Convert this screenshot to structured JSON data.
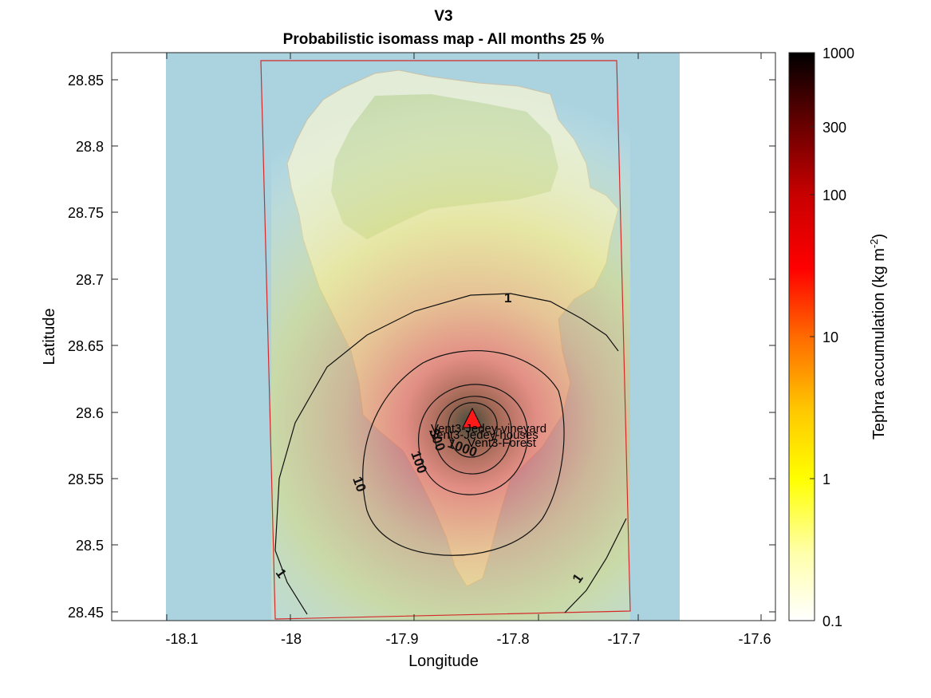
{
  "chart_data": {
    "type": "map",
    "title": "V3",
    "subtitle": "Probabilistic isomass map - All months 25 %",
    "xlabel": "Longitude",
    "ylabel": "Latitude",
    "xlim": [
      -18.15,
      -17.585
    ],
    "ylim": [
      28.443,
      28.87
    ],
    "x_ticks": [
      -18.1,
      -18.0,
      -17.9,
      -17.8,
      -17.7,
      -17.6
    ],
    "x_tick_labels": [
      "-18.1",
      "-18",
      "-17.9",
      "-17.8",
      "-17.7",
      "-17.6"
    ],
    "y_ticks": [
      28.45,
      28.5,
      28.55,
      28.6,
      28.65,
      28.7,
      28.75,
      28.8,
      28.85
    ],
    "y_tick_labels": [
      "28.45",
      "28.5",
      "28.55",
      "28.6",
      "28.65",
      "28.7",
      "28.75",
      "28.8",
      "28.85"
    ],
    "vent": {
      "lon": -17.842,
      "lat": 28.597,
      "marker": "red-triangle"
    },
    "sites": [
      {
        "label": "Vent3-Jedey-vineyard",
        "lon": -17.873,
        "lat": 28.59
      },
      {
        "label": "Vent3-Jedey-houses",
        "lon": -17.876,
        "lat": 28.584
      },
      {
        "label": "Vent3-Forest",
        "lon": -17.843,
        "lat": 28.579
      }
    ],
    "contours": [
      {
        "level": 1,
        "label": "1"
      },
      {
        "level": 10,
        "label": "10"
      },
      {
        "level": 100,
        "label": "100"
      },
      {
        "level": 300,
        "label": "300"
      },
      {
        "level": 1000,
        "label": "1000"
      }
    ],
    "colorbar": {
      "label": "Tephra accumulation (kg m",
      "label_sup": "-2",
      "label_end": ")",
      "scale": "log",
      "range": [
        0.1,
        1000
      ],
      "ticks": [
        0.1,
        1,
        10,
        100,
        300,
        1000
      ],
      "tick_labels": [
        "0.1",
        "1",
        "10",
        "100",
        "300",
        "1000"
      ],
      "colormap": "hot-reversed"
    },
    "colors": {
      "sea": "#aad3df",
      "land": "#e6efd9",
      "domain_border": "#d42a2a",
      "contour": "#111111"
    }
  }
}
